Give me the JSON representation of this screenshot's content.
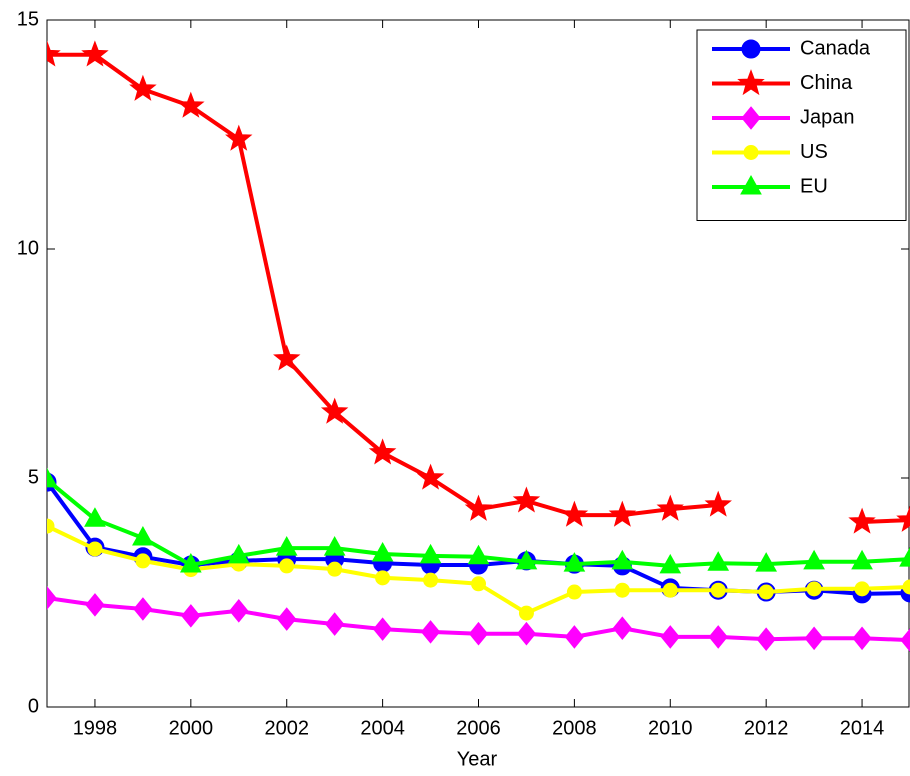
{
  "chart_data": {
    "type": "line",
    "x": [
      1997,
      1998,
      1999,
      2000,
      2001,
      2002,
      2003,
      2004,
      2005,
      2006,
      2007,
      2008,
      2009,
      2010,
      2011,
      2012,
      2013,
      2014,
      2015
    ],
    "xlabel": "Year",
    "xlim": [
      1997,
      2015
    ],
    "xticks": [
      1998,
      2000,
      2002,
      2004,
      2006,
      2008,
      2010,
      2012,
      2014
    ],
    "ylim": [
      0,
      15
    ],
    "yticks": [
      0,
      5,
      10,
      15
    ],
    "grid": false,
    "legend": "upper right",
    "series": [
      {
        "name": "Canada",
        "color": "#0000ff",
        "marker": "circle",
        "values": [
          4.91,
          3.49,
          3.28,
          3.1,
          3.19,
          3.23,
          3.23,
          3.14,
          3.1,
          3.1,
          3.19,
          3.12,
          3.08,
          2.6,
          2.55,
          2.51,
          2.55,
          2.47,
          2.49
        ]
      },
      {
        "name": "China",
        "color": "#ff0000",
        "marker": "star",
        "values": [
          14.24,
          14.24,
          13.49,
          13.12,
          12.4,
          7.6,
          6.44,
          5.55,
          5.0,
          4.32,
          4.5,
          4.19,
          4.19,
          4.32,
          4.41,
          null,
          null,
          4.04,
          4.08
        ]
      },
      {
        "name": "Japan",
        "color": "#ff00ff",
        "marker": "diamond",
        "values": [
          2.38,
          2.23,
          2.14,
          1.99,
          2.1,
          1.92,
          1.81,
          1.7,
          1.64,
          1.6,
          1.6,
          1.53,
          1.72,
          1.53,
          1.53,
          1.48,
          1.5,
          1.5,
          1.46
        ]
      },
      {
        "name": "US",
        "color": "#ffff00",
        "marker": "point",
        "values": [
          3.95,
          3.45,
          3.19,
          3.0,
          3.12,
          3.08,
          3.01,
          2.82,
          2.77,
          2.69,
          2.05,
          2.51,
          2.55,
          2.55,
          2.55,
          2.51,
          2.58,
          2.58,
          2.62
        ]
      },
      {
        "name": "EU",
        "color": "#00ff00",
        "marker": "triangle",
        "values": [
          4.96,
          4.1,
          3.69,
          3.1,
          3.3,
          3.47,
          3.47,
          3.34,
          3.3,
          3.28,
          3.17,
          3.12,
          3.17,
          3.08,
          3.14,
          3.12,
          3.17,
          3.17,
          3.23
        ]
      }
    ]
  }
}
